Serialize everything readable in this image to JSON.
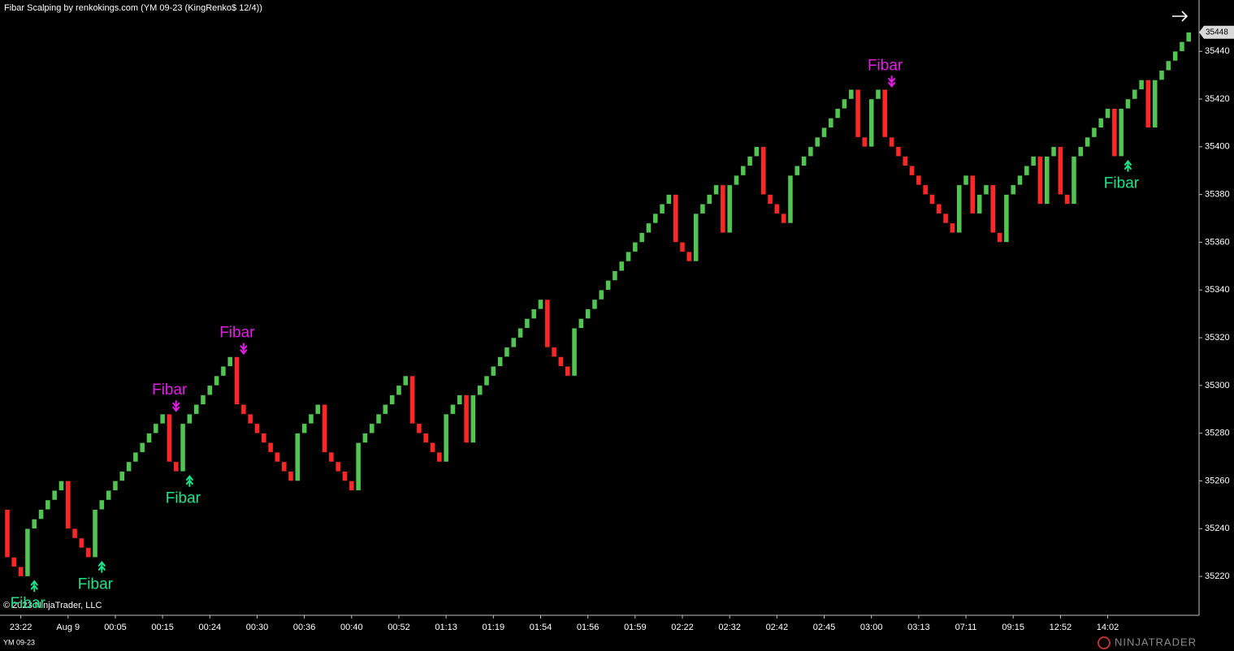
{
  "chart_data": {
    "type": "candlestick",
    "title": "Fibar Scalping by renkokings.com (YM 09-23 (KingRenko$ 12/4))",
    "copyright": "© 2023 NinjaTrader, LLC",
    "instrument": "YM 09-23",
    "logo": "NINJATRADER",
    "up_color": "#52c452",
    "down_color": "#ff2626",
    "buy_color": "#1de38a",
    "sell_color": "#e41ee4",
    "ylim": [
      35203.7,
      35461.5
    ],
    "yticks": [
      35220,
      35240,
      35260,
      35280,
      35300,
      35320,
      35340,
      35360,
      35380,
      35400,
      35420,
      35440
    ],
    "categories": [
      null,
      null,
      "23:22",
      null,
      null,
      null,
      null,
      null,
      null,
      "Aug 9",
      null,
      null,
      null,
      null,
      null,
      null,
      "00:05",
      null,
      null,
      null,
      null,
      null,
      null,
      "00:15",
      null,
      null,
      null,
      null,
      null,
      null,
      "00:24",
      null,
      null,
      null,
      null,
      null,
      null,
      "00:30",
      null,
      null,
      null,
      null,
      null,
      null,
      "00:36",
      null,
      null,
      null,
      null,
      null,
      null,
      "00:40",
      null,
      null,
      null,
      null,
      null,
      null,
      "00:52",
      null,
      null,
      null,
      null,
      null,
      null,
      "01:13",
      null,
      null,
      null,
      null,
      null,
      null,
      "01:19",
      null,
      null,
      null,
      null,
      null,
      null,
      "01:54",
      null,
      null,
      null,
      null,
      null,
      null,
      "01:56",
      null,
      null,
      null,
      null,
      null,
      null,
      "01:59",
      null,
      null,
      null,
      null,
      null,
      null,
      "02:22",
      null,
      null,
      null,
      null,
      null,
      null,
      "02:32",
      null,
      null,
      null,
      null,
      null,
      null,
      "02:42",
      null,
      null,
      null,
      null,
      null,
      null,
      "02:45",
      null,
      null,
      null,
      null,
      null,
      null,
      "03:00",
      null,
      null,
      null,
      null,
      null,
      null,
      "03:13",
      null,
      null,
      null,
      null,
      null,
      null,
      "07:11",
      null,
      null,
      null,
      null,
      null,
      null,
      "09:15",
      null,
      null,
      null,
      null,
      null,
      null,
      "12:52",
      null,
      null,
      null,
      null,
      null,
      null,
      "14:02",
      null,
      null,
      null,
      null,
      null,
      null,
      null,
      null,
      null,
      null,
      null,
      null
    ],
    "open": [
      35248,
      35228,
      35224,
      35220,
      35240,
      35244,
      35248,
      35252,
      35256,
      35260,
      35240,
      35236,
      35232,
      35228,
      35248,
      35252,
      35256,
      35260,
      35264,
      35268,
      35272,
      35276,
      35280,
      35284,
      35288,
      35268,
      35264,
      35284,
      35288,
      35292,
      35296,
      35300,
      35304,
      35308,
      35312,
      35292,
      35288,
      35284,
      35280,
      35276,
      35272,
      35268,
      35264,
      35260,
      35280,
      35284,
      35288,
      35292,
      35272,
      35268,
      35264,
      35260,
      35256,
      35276,
      35280,
      35284,
      35288,
      35292,
      35296,
      35300,
      35304,
      35284,
      35280,
      35276,
      35272,
      35268,
      35288,
      35292,
      35296,
      35276,
      35296,
      35300,
      35304,
      35308,
      35312,
      35316,
      35320,
      35324,
      35328,
      35332,
      35336,
      35316,
      35312,
      35308,
      35304,
      35324,
      35328,
      35332,
      35336,
      35340,
      35344,
      35348,
      35352,
      35356,
      35360,
      35364,
      35368,
      35372,
      35376,
      35380,
      35360,
      35356,
      35352,
      35372,
      35376,
      35380,
      35384,
      35364,
      35384,
      35388,
      35392,
      35396,
      35400,
      35380,
      35376,
      35372,
      35368,
      35388,
      35392,
      35396,
      35400,
      35404,
      35408,
      35412,
      35416,
      35420,
      35424,
      35404,
      35400,
      35420,
      35424,
      35404,
      35400,
      35396,
      35392,
      35388,
      35384,
      35380,
      35376,
      35372,
      35368,
      35364,
      35384,
      35388,
      35372,
      35380,
      35384,
      35364,
      35360,
      35380,
      35384,
      35388,
      35392,
      35396,
      35376,
      35396,
      35400,
      35380,
      35376,
      35396,
      35400,
      35404,
      35408,
      35412,
      35416,
      35396,
      35416,
      35420,
      35424,
      35428,
      35408,
      35428,
      35432,
      35436,
      35440,
      35444
    ],
    "close": [
      35228,
      35224,
      35220,
      35240,
      35244,
      35248,
      35252,
      35256,
      35260,
      35240,
      35236,
      35232,
      35228,
      35248,
      35252,
      35256,
      35260,
      35264,
      35268,
      35272,
      35276,
      35280,
      35284,
      35288,
      35268,
      35264,
      35284,
      35288,
      35292,
      35296,
      35300,
      35304,
      35308,
      35312,
      35292,
      35288,
      35284,
      35280,
      35276,
      35272,
      35268,
      35264,
      35260,
      35280,
      35284,
      35288,
      35292,
      35272,
      35268,
      35264,
      35260,
      35256,
      35276,
      35280,
      35284,
      35288,
      35292,
      35296,
      35300,
      35304,
      35284,
      35280,
      35276,
      35272,
      35268,
      35288,
      35292,
      35296,
      35276,
      35296,
      35300,
      35304,
      35308,
      35312,
      35316,
      35320,
      35324,
      35328,
      35332,
      35336,
      35316,
      35312,
      35308,
      35304,
      35324,
      35328,
      35332,
      35336,
      35340,
      35344,
      35348,
      35352,
      35356,
      35360,
      35364,
      35368,
      35372,
      35376,
      35380,
      35360,
      35356,
      35352,
      35372,
      35376,
      35380,
      35384,
      35364,
      35384,
      35388,
      35392,
      35396,
      35400,
      35380,
      35376,
      35372,
      35368,
      35388,
      35392,
      35396,
      35400,
      35404,
      35408,
      35412,
      35416,
      35420,
      35424,
      35404,
      35400,
      35420,
      35424,
      35404,
      35400,
      35396,
      35392,
      35388,
      35384,
      35380,
      35376,
      35372,
      35368,
      35364,
      35384,
      35388,
      35372,
      35380,
      35384,
      35364,
      35360,
      35380,
      35384,
      35388,
      35392,
      35396,
      35376,
      35396,
      35400,
      35380,
      35376,
      35396,
      35400,
      35404,
      35408,
      35412,
      35416,
      35396,
      35416,
      35420,
      35424,
      35428,
      35408,
      35428,
      35432,
      35436,
      35440,
      35444,
      35448
    ],
    "signals": [
      {
        "label": "Fibar",
        "index": 4,
        "side": "buy"
      },
      {
        "label": "Fibar",
        "index": 14,
        "side": "buy"
      },
      {
        "label": "Fibar",
        "index": 25,
        "side": "sell"
      },
      {
        "label": "Fibar",
        "index": 27,
        "side": "buy"
      },
      {
        "label": "Fibar",
        "index": 35,
        "side": "sell"
      },
      {
        "label": "Fibar",
        "index": 131,
        "side": "sell"
      },
      {
        "label": "Fibar",
        "index": 166,
        "side": "buy"
      }
    ]
  }
}
